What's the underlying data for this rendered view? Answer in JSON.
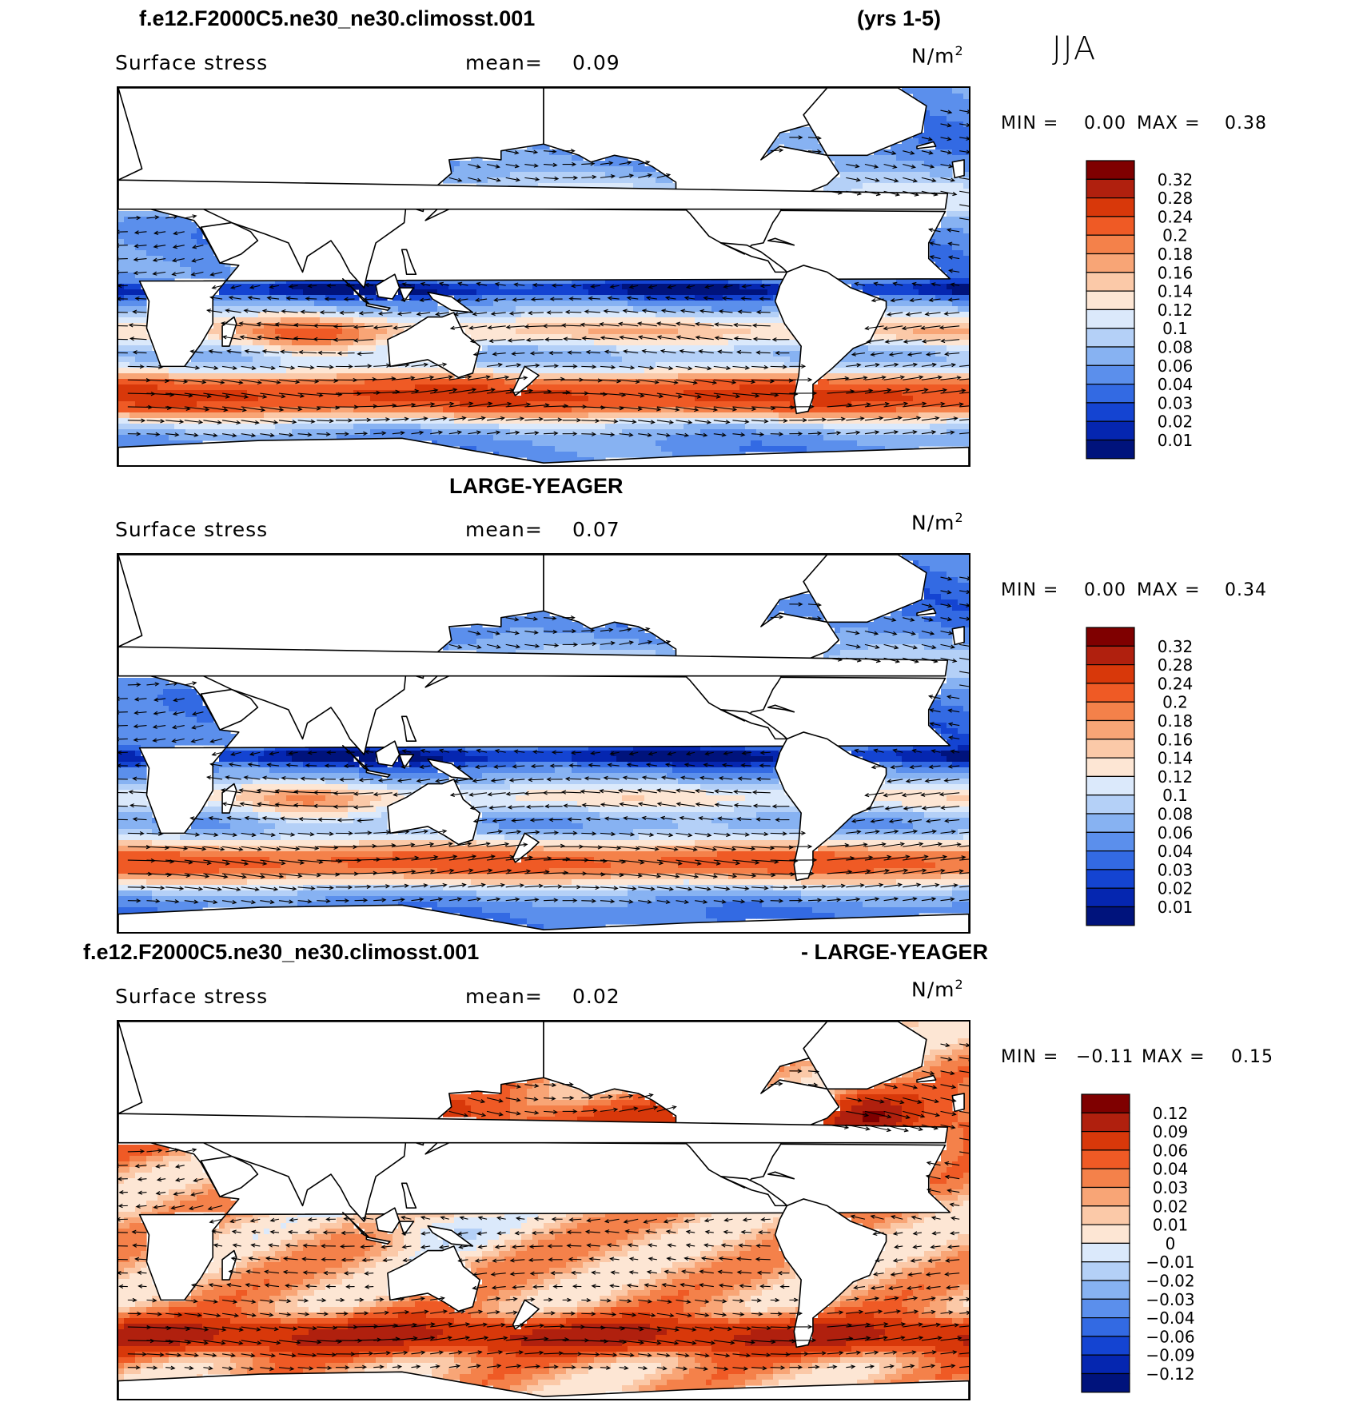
{
  "season": "JJA",
  "panels": [
    {
      "title_left": "f.e12.F2000C5.ne30_ne30.climosst.001",
      "title_right": "(yrs 1-5)",
      "variable": "Surface stress",
      "mean_label": "mean=",
      "mean_value": "0.09",
      "units_base": "N/m",
      "units_exp": "2",
      "min_label": "MIN =",
      "min_value": "0.00",
      "max_label": "MAX =",
      "max_value": "0.38",
      "colorbar": {
        "labels": [
          "0.32",
          "0.28",
          "0.24",
          "0.2",
          "0.18",
          "0.16",
          "0.14",
          "0.12",
          "0.1",
          "0.08",
          "0.06",
          "0.04",
          "0.03",
          "0.02",
          "0.01"
        ],
        "colors": [
          "#7f0000",
          "#b0200e",
          "#d8380a",
          "#ef5a25",
          "#f4814a",
          "#f8a576",
          "#fbc9a8",
          "#fde6d4",
          "#dbe9fb",
          "#b4d0f7",
          "#87b2f2",
          "#5b8fec",
          "#336ae3",
          "#1444d2",
          "#0526b0",
          "#00137c"
        ]
      }
    },
    {
      "title_left": "LARGE-YEAGER",
      "title_right": "",
      "variable": "Surface stress",
      "mean_label": "mean=",
      "mean_value": "0.07",
      "units_base": "N/m",
      "units_exp": "2",
      "min_label": "MIN =",
      "min_value": "0.00",
      "max_label": "MAX =",
      "max_value": "0.34",
      "colorbar": {
        "labels": [
          "0.32",
          "0.28",
          "0.24",
          "0.2",
          "0.18",
          "0.16",
          "0.14",
          "0.12",
          "0.1",
          "0.08",
          "0.06",
          "0.04",
          "0.03",
          "0.02",
          "0.01"
        ],
        "colors": [
          "#7f0000",
          "#b0200e",
          "#d8380a",
          "#ef5a25",
          "#f4814a",
          "#f8a576",
          "#fbc9a8",
          "#fde6d4",
          "#dbe9fb",
          "#b4d0f7",
          "#87b2f2",
          "#5b8fec",
          "#336ae3",
          "#1444d2",
          "#0526b0",
          "#00137c"
        ]
      }
    },
    {
      "title_left": "f.e12.F2000C5.ne30_ne30.climosst.001",
      "title_right": "- LARGE-YEAGER",
      "variable": "Surface stress",
      "mean_label": "mean=",
      "mean_value": "0.02",
      "units_base": "N/m",
      "units_exp": "2",
      "min_label": "MIN =",
      "min_value": "−0.11",
      "max_label": "MAX =",
      "max_value": "0.15",
      "colorbar": {
        "labels": [
          "0.12",
          "0.09",
          "0.06",
          "0.04",
          "0.03",
          "0.02",
          "0.01",
          "0",
          "−0.01",
          "−0.02",
          "−0.03",
          "−0.04",
          "−0.06",
          "−0.09",
          "−0.12"
        ],
        "colors": [
          "#7f0000",
          "#b0200e",
          "#d8380a",
          "#ef5a25",
          "#f4814a",
          "#f8a576",
          "#fbc9a8",
          "#fde6d4",
          "#dbe9fb",
          "#b4d0f7",
          "#87b2f2",
          "#5b8fec",
          "#336ae3",
          "#1444d2",
          "#0526b0",
          "#00137c"
        ]
      }
    }
  ]
}
